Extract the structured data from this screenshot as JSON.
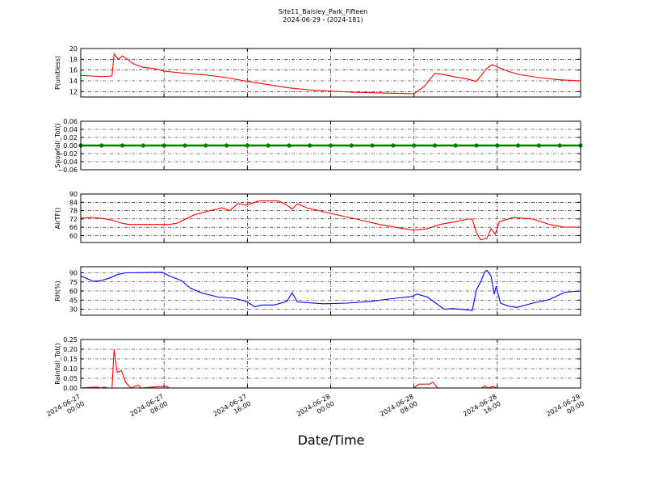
{
  "title": "Site11_Baisley_Park_Fifteen",
  "subtitle": "2024-06-29 - (2024-181)",
  "xlabel": "Date/Time",
  "xlim": [
    "2024-06-27 00:00",
    "2024-06-29 00:00"
  ],
  "xticks": [
    "2024-06-27 00:00",
    "2024-06-27 08:00",
    "2024-06-27 16:00",
    "2024-06-28 00:00",
    "2024-06-28 08:00",
    "2024-06-28 16:00",
    "2024-06-29 00:00"
  ],
  "chart_data": [
    {
      "type": "line",
      "ylabel": "P(unitless)",
      "color": "#ff0000",
      "grid": true,
      "ylim": [
        11,
        20
      ],
      "yticks": [
        12,
        14,
        16,
        18,
        20
      ],
      "x": [
        "2024-06-27 00:00",
        "2024-06-27 01:00",
        "2024-06-27 02:00",
        "2024-06-27 03:00",
        "2024-06-27 03:12",
        "2024-06-27 03:36",
        "2024-06-27 04:00",
        "2024-06-27 04:30",
        "2024-06-27 05:00",
        "2024-06-27 06:00",
        "2024-06-27 07:00",
        "2024-06-27 08:00",
        "2024-06-27 10:00",
        "2024-06-27 12:00",
        "2024-06-27 14:00",
        "2024-06-27 16:00",
        "2024-06-27 18:00",
        "2024-06-27 20:00",
        "2024-06-27 22:00",
        "2024-06-28 00:00",
        "2024-06-28 02:00",
        "2024-06-28 04:00",
        "2024-06-28 06:00",
        "2024-06-28 08:00",
        "2024-06-28 09:00",
        "2024-06-28 10:00",
        "2024-06-28 11:00",
        "2024-06-28 12:00",
        "2024-06-28 13:00",
        "2024-06-28 14:00",
        "2024-06-28 15:00",
        "2024-06-28 15:30",
        "2024-06-28 16:00",
        "2024-06-28 17:00",
        "2024-06-28 18:00",
        "2024-06-28 20:00",
        "2024-06-28 22:00",
        "2024-06-29 00:00"
      ],
      "values": [
        15.0,
        14.9,
        14.8,
        14.9,
        19.0,
        18.0,
        18.6,
        18.0,
        17.2,
        16.5,
        16.3,
        15.8,
        15.4,
        15.1,
        14.6,
        13.9,
        13.3,
        12.7,
        12.3,
        12.1,
        11.9,
        11.8,
        11.7,
        11.6,
        13.0,
        15.4,
        15.1,
        14.7,
        14.4,
        13.9,
        16.3,
        17.0,
        16.6,
        15.8,
        15.2,
        14.6,
        14.2,
        14.0
      ]
    },
    {
      "type": "line",
      "ylabel": "Snowfall_Tot()",
      "color": "#008000",
      "marker": "o",
      "grid": true,
      "ylim": [
        -0.06,
        0.06
      ],
      "yticks": [
        {
          "value": -0.06,
          "label": "−0.06"
        },
        {
          "value": -0.04,
          "label": "−0.04"
        },
        {
          "value": -0.02,
          "label": "−0.02"
        },
        {
          "value": 0,
          "label": "0.00"
        },
        0.02,
        0.04,
        0.06
      ],
      "x": [
        "2024-06-27 00:00",
        "2024-06-27 02:00",
        "2024-06-27 04:00",
        "2024-06-27 06:00",
        "2024-06-27 08:00",
        "2024-06-27 10:00",
        "2024-06-27 12:00",
        "2024-06-27 14:00",
        "2024-06-27 16:00",
        "2024-06-27 18:00",
        "2024-06-27 20:00",
        "2024-06-27 22:00",
        "2024-06-28 00:00",
        "2024-06-28 02:00",
        "2024-06-28 04:00",
        "2024-06-28 06:00",
        "2024-06-28 08:00",
        "2024-06-28 10:00",
        "2024-06-28 12:00",
        "2024-06-28 14:00",
        "2024-06-28 16:00",
        "2024-06-28 18:00",
        "2024-06-28 20:00",
        "2024-06-28 22:00",
        "2024-06-29 00:00"
      ],
      "values": [
        0,
        0,
        0,
        0,
        0,
        0,
        0,
        0,
        0,
        0,
        0,
        0,
        0,
        0,
        0,
        0,
        0,
        0,
        0,
        0,
        0,
        0,
        0,
        0,
        0
      ]
    },
    {
      "type": "line",
      "ylabel": "AirTF()",
      "color": "#ff0000",
      "grid": true,
      "ylim": [
        55,
        90
      ],
      "yticks": [
        60,
        66,
        72,
        78,
        84,
        90
      ],
      "x": [
        "2024-06-27 00:00",
        "2024-06-27 01:00",
        "2024-06-27 02:00",
        "2024-06-27 03:06",
        "2024-06-27 03:54",
        "2024-06-27 04:36",
        "2024-06-27 07:48",
        "2024-06-27 08:30",
        "2024-06-27 09:18",
        "2024-06-27 10:54",
        "2024-06-27 12:24",
        "2024-06-27 13:36",
        "2024-06-27 14:18",
        "2024-06-27 15:06",
        "2024-06-27 15:54",
        "2024-06-27 17:06",
        "2024-06-27 17:48",
        "2024-06-27 19:00",
        "2024-06-27 19:48",
        "2024-06-27 20:18",
        "2024-06-27 20:48",
        "2024-06-27 21:42",
        "2024-06-28 00:00",
        "2024-06-28 02:24",
        "2024-06-28 04:42",
        "2024-06-28 07:00",
        "2024-06-28 08:00",
        "2024-06-28 09:18",
        "2024-06-28 10:30",
        "2024-06-28 12:00",
        "2024-06-28 13:12",
        "2024-06-28 13:36",
        "2024-06-28 14:00",
        "2024-06-28 14:24",
        "2024-06-28 15:00",
        "2024-06-28 15:24",
        "2024-06-28 15:48",
        "2024-06-28 16:12",
        "2024-06-28 17:30",
        "2024-06-28 19:24",
        "2024-06-28 21:00",
        "2024-06-28 22:30",
        "2024-06-29 00:00"
      ],
      "values": [
        72.5,
        73,
        72.5,
        71,
        69,
        68,
        68,
        68,
        69,
        75,
        78,
        80,
        78,
        83,
        82,
        85,
        85,
        85,
        82,
        79,
        83,
        80,
        76,
        72,
        68,
        65,
        64,
        65,
        68,
        70,
        72,
        72,
        62,
        57,
        58,
        65,
        61,
        70,
        73,
        72,
        68,
        66,
        66
      ]
    },
    {
      "type": "line",
      "ylabel": "RH(%)",
      "color": "#0000ff",
      "grid": true,
      "ylim": [
        20,
        100
      ],
      "yticks": [
        30,
        45,
        60,
        75,
        90
      ],
      "x": [
        "2024-06-27 00:00",
        "2024-06-27 00:48",
        "2024-06-27 01:12",
        "2024-06-27 01:54",
        "2024-06-27 02:42",
        "2024-06-27 03:30",
        "2024-06-27 04:18",
        "2024-06-27 07:48",
        "2024-06-27 08:30",
        "2024-06-27 09:42",
        "2024-06-27 10:30",
        "2024-06-27 11:36",
        "2024-06-27 13:12",
        "2024-06-27 14:42",
        "2024-06-27 15:54",
        "2024-06-27 16:42",
        "2024-06-27 17:24",
        "2024-06-27 18:36",
        "2024-06-27 19:48",
        "2024-06-27 20:18",
        "2024-06-27 20:48",
        "2024-06-27 21:42",
        "2024-06-27 23:18",
        "2024-06-28 01:36",
        "2024-06-28 03:54",
        "2024-06-28 06:12",
        "2024-06-28 07:48",
        "2024-06-28 08:18",
        "2024-06-28 09:18",
        "2024-06-28 10:06",
        "2024-06-28 10:54",
        "2024-06-28 11:42",
        "2024-06-28 13:12",
        "2024-06-28 13:36",
        "2024-06-28 14:00",
        "2024-06-28 14:24",
        "2024-06-28 14:48",
        "2024-06-28 15:00",
        "2024-06-28 15:24",
        "2024-06-28 15:42",
        "2024-06-28 15:54",
        "2024-06-28 16:18",
        "2024-06-28 17:06",
        "2024-06-28 17:54",
        "2024-06-28 19:24",
        "2024-06-28 21:00",
        "2024-06-28 22:30",
        "2024-06-29 00:00"
      ],
      "values": [
        85,
        79,
        76,
        77,
        81,
        87,
        90,
        91,
        85,
        77,
        65,
        57,
        50,
        48,
        43,
        34,
        37,
        37,
        43,
        57,
        42,
        41,
        39,
        40,
        43,
        48,
        51,
        55,
        50,
        40,
        30,
        31,
        29,
        28,
        62,
        75,
        92,
        94,
        85,
        55,
        68,
        40,
        35,
        33,
        40,
        46,
        58,
        60
      ]
    },
    {
      "type": "line",
      "ylabel": "Rainfall_Tot()",
      "color": "#ff0000",
      "grid": true,
      "ylim": [
        0,
        0.25
      ],
      "yticks": [
        {
          "value": 0,
          "label": "0.00"
        },
        0.05,
        {
          "value": 0.1,
          "label": "0.10"
        },
        0.15,
        {
          "value": 0.2,
          "label": "0.20"
        },
        0.25
      ],
      "x": [
        "2024-06-27 00:00",
        "2024-06-27 01:30",
        "2024-06-27 02:00",
        "2024-06-27 02:12",
        "2024-06-27 02:36",
        "2024-06-27 03:00",
        "2024-06-27 03:12",
        "2024-06-27 03:30",
        "2024-06-27 03:54",
        "2024-06-27 04:18",
        "2024-06-27 04:48",
        "2024-06-27 05:30",
        "2024-06-27 05:48",
        "2024-06-27 08:12",
        "2024-06-27 08:30",
        "2024-06-28 08:00",
        "2024-06-28 08:30",
        "2024-06-28 09:30",
        "2024-06-28 09:48",
        "2024-06-28 10:18",
        "2024-06-28 14:30",
        "2024-06-28 14:48",
        "2024-06-28 15:06",
        "2024-06-28 15:36",
        "2024-06-28 16:00",
        "2024-06-29 00:00"
      ],
      "values": [
        0,
        0.005,
        0,
        0.005,
        0,
        0,
        0.2,
        0.08,
        0.09,
        0.03,
        0,
        0.015,
        0,
        0.01,
        0,
        0,
        0.02,
        0.02,
        0.03,
        0,
        0,
        0.01,
        0,
        0.008,
        0,
        0
      ]
    }
  ]
}
